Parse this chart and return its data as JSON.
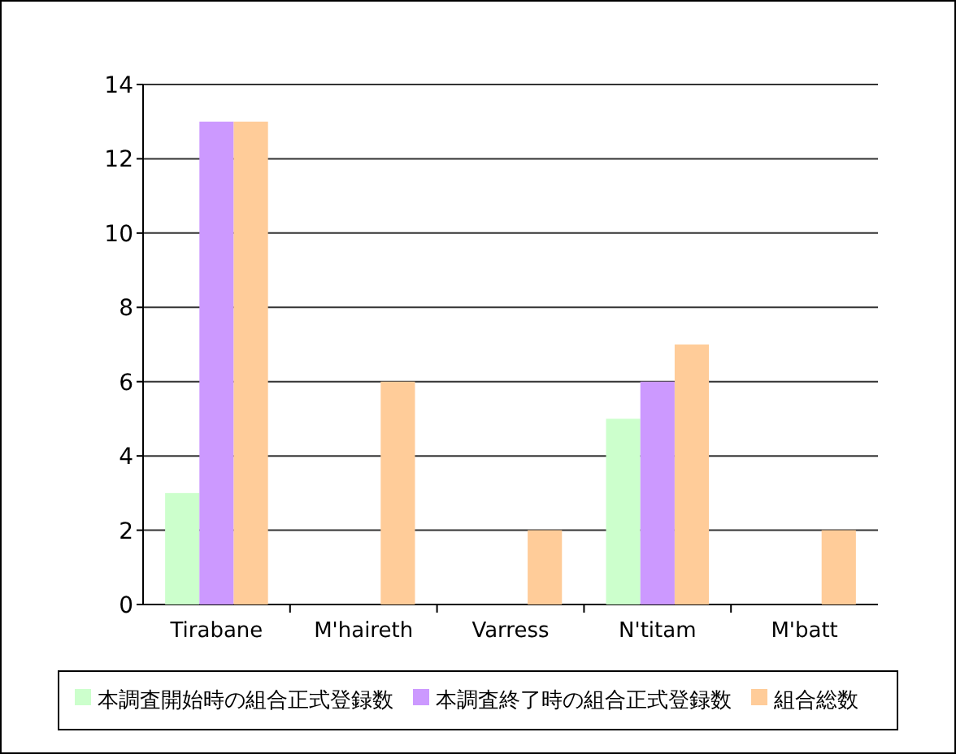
{
  "chart_data": {
    "type": "bar",
    "categories": [
      "Tirabane",
      "M'haireth",
      "Varress",
      "N'titam",
      "M'batt"
    ],
    "series": [
      {
        "name": "本調査開始時の組合正式登録数",
        "color": "#ccffcc",
        "values": [
          3,
          0,
          0,
          5,
          0
        ]
      },
      {
        "name": "本調査終了時の組合正式登録数",
        "color": "#cc99ff",
        "values": [
          13,
          0,
          0,
          6,
          0
        ]
      },
      {
        "name": "組合総数",
        "color": "#ffcc99",
        "values": [
          13,
          6,
          2,
          7,
          2
        ]
      }
    ],
    "ylim": [
      0,
      14
    ],
    "yticks": [
      0,
      2,
      4,
      6,
      8,
      10,
      12,
      14
    ],
    "grid": "y",
    "legend": "bottom"
  }
}
